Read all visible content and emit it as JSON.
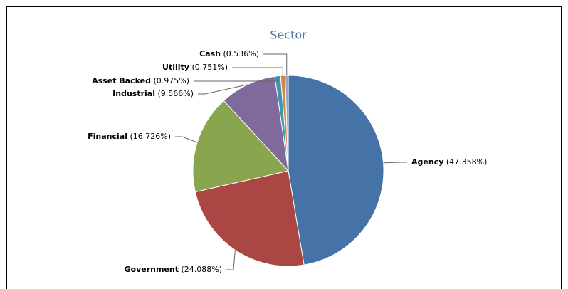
{
  "chart_data": {
    "type": "pie",
    "title": "Sector",
    "categories": [
      "Agency",
      "Government",
      "Financial",
      "Industrial",
      "Asset Backed",
      "Utility",
      "Cash"
    ],
    "values": [
      47.358,
      24.088,
      16.726,
      9.566,
      0.975,
      0.751,
      0.536
    ],
    "value_labels": [
      "(47.358%)",
      "(24.088%)",
      "(16.726%)",
      "(9.566%)",
      "(0.975%)",
      "(0.751%)",
      "(0.536%)"
    ],
    "colors": [
      "#4572a7",
      "#aa4643",
      "#89a54e",
      "#80699b",
      "#3d96ae",
      "#db843d",
      "#92a8cd"
    ]
  }
}
